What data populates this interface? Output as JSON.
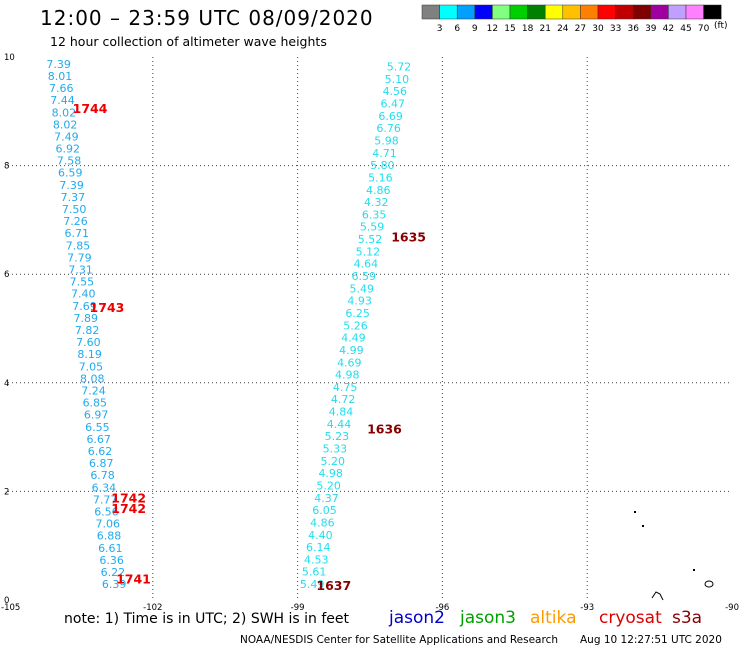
{
  "header": {
    "title": "12:00 – 23:59 UTC 08/09/2020",
    "subtitle": "12 hour collection of altimeter wave heights"
  },
  "color_scale": {
    "colors": [
      "#808080",
      "#00ffff",
      "#00a0ff",
      "#0000ff",
      "#80ff80",
      "#00d000",
      "#008000",
      "#ffff00",
      "#ffc000",
      "#ff8000",
      "#ff0000",
      "#c00000",
      "#800000",
      "#a000a0",
      "#c0a0ff",
      "#ff80ff",
      "#000000"
    ],
    "ticks": [
      "3",
      "6",
      "9",
      "12",
      "15",
      "18",
      "21",
      "24",
      "27",
      "30",
      "33",
      "36",
      "39",
      "42",
      "45",
      "70"
    ],
    "unit": "(ft)"
  },
  "footer": {
    "note": "note:  1) Time is in UTC;  2) SWH is in feet",
    "credit": "NOAA/NESDIS Center for Satellite Applications and Research",
    "timestamp": "Aug 10 12:27:51 UTC 2020"
  },
  "satellites": [
    {
      "name": "jason2",
      "color": "#0000cc"
    },
    {
      "name": "jason3",
      "color": "#00a000"
    },
    {
      "name": "altika",
      "color": "#ff9900"
    },
    {
      "name": "cryosat",
      "color": "#dd0000"
    },
    {
      "name": "s3a",
      "color": "#880000"
    }
  ],
  "chart_data": {
    "type": "scatter",
    "xlim": [
      -105,
      -90
    ],
    "ylim": [
      0,
      10
    ],
    "x_ticks": [
      "-105",
      "-102",
      "-99",
      "-96",
      "-93",
      "-90"
    ],
    "y_ticks": [
      "0",
      "2",
      "4",
      "6",
      "8",
      "10"
    ],
    "tracks": [
      {
        "color": "#22aaee",
        "values": [
          "7.39",
          "8.01",
          "7.66",
          "7.44",
          "8.02",
          "8.02",
          "7.49",
          "6.92",
          "7.58",
          "6.59",
          "7.39",
          "7.37",
          "7.50",
          "7.26",
          "6.71",
          "7.85",
          "7.79",
          "7.31",
          "7.55",
          "7.40",
          "7.69",
          "7.89",
          "7.82",
          "7.60",
          "8.19",
          "7.05",
          "8.08",
          "7.24",
          "6.85",
          "6.97",
          "6.55",
          "6.67",
          "6.62",
          "6.87",
          "6.78",
          "6.34",
          "7.77",
          "6.56",
          "7.06",
          "6.88",
          "6.61",
          "6.36",
          "6.22",
          "6.39"
        ],
        "x_start": -103.95,
        "y_start": 9.8,
        "x_end": -102.8,
        "y_end": 0.22
      },
      {
        "color": "#22ddee",
        "values": [
          "5.72",
          "5.10",
          "4.56",
          "6.47",
          "6.69",
          "6.76",
          "5.98",
          "4.71",
          "5.80",
          "5.16",
          "4.86",
          "4.32",
          "6.35",
          "5.59",
          "5.52",
          "5.12",
          "4.64",
          "6.59",
          "5.49",
          "4.93",
          "6.25",
          "5.26",
          "4.49",
          "4.99",
          "4.69",
          "4.98",
          "4.75",
          "4.72",
          "4.84",
          "4.44",
          "5.23",
          "5.33",
          "5.20",
          "4.98",
          "5.20",
          "4.37",
          "6.05",
          "4.86",
          "4.40",
          "6.14",
          "4.53",
          "5.61",
          "5.49"
        ],
        "x_start": -96.9,
        "y_start": 9.75,
        "x_end": -98.7,
        "y_end": 0.22
      }
    ],
    "time_labels": [
      {
        "text": "1744",
        "x": -103.3,
        "y": 8.97,
        "color": "#ee0000"
      },
      {
        "text": "1743",
        "x": -102.95,
        "y": 5.3,
        "color": "#ee0000"
      },
      {
        "text": "1742",
        "x": -102.5,
        "y": 1.8,
        "color": "#ee0000"
      },
      {
        "text": "1742",
        "x": -102.5,
        "y": 1.6,
        "color": "#ee0000"
      },
      {
        "text": "1741",
        "x": -102.4,
        "y": 0.3,
        "color": "#ee0000"
      },
      {
        "text": "1635",
        "x": -96.7,
        "y": 6.6,
        "color": "#880000"
      },
      {
        "text": "1636",
        "x": -97.2,
        "y": 3.07,
        "color": "#880000"
      },
      {
        "text": "1637",
        "x": -98.25,
        "y": 0.18,
        "color": "#880000"
      }
    ]
  }
}
